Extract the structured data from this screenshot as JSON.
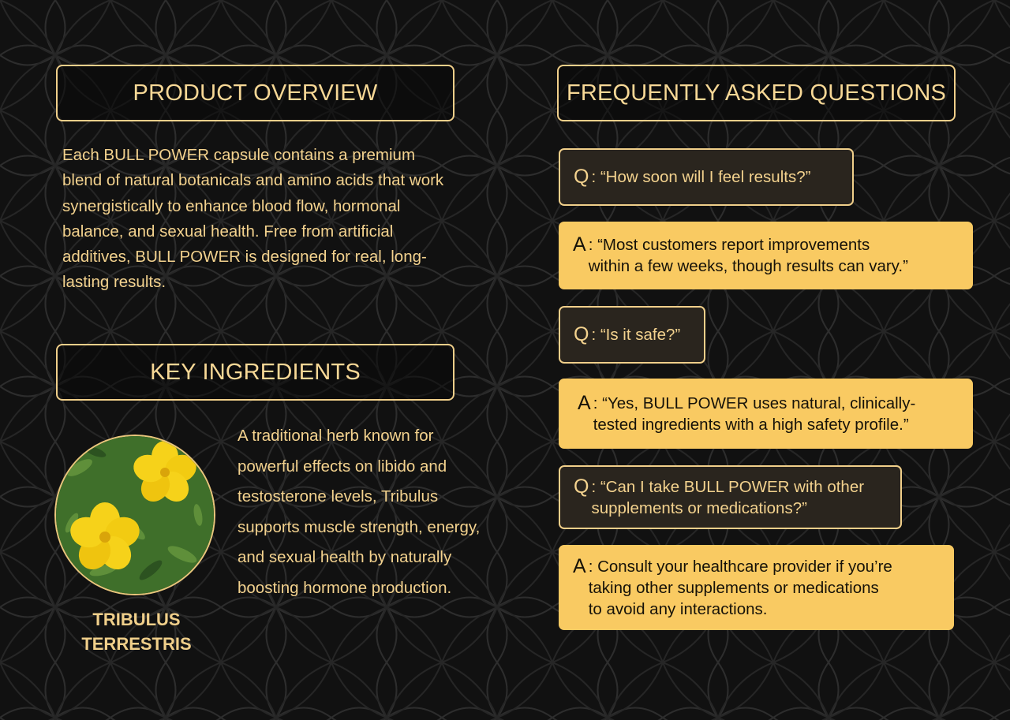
{
  "product_overview": {
    "title": "PRODUCT OVERVIEW",
    "text": "Each BULL POWER capsule contains a premium blend of natural botanicals and amino acids that work synergistically to enhance blood flow, hormonal balance, and sexual health. Free from artificial additives, BULL POWER is designed for real, long-lasting results."
  },
  "key_ingredients": {
    "title": "KEY INGREDIENTS",
    "ingredient_name": "TRIBULUS TERRESTRIS",
    "ingredient_description": "A traditional herb known for powerful effects on libido and testosterone levels, Tribulus supports muscle strength, energy, and sexual health by naturally boosting hormone production.",
    "image_icon": "yellow-flower-photo"
  },
  "faq": {
    "title": "FREQUENTLY ASKED QUESTIONS",
    "items": [
      {
        "q_prefix": "Q",
        "question": ": “How soon will I feel results?”",
        "a_prefix": "A",
        "answer": ": “Most customers report improvements\n  within a few weeks, though results can vary.”"
      },
      {
        "q_prefix": "Q",
        "question": ": “Is it safe?”",
        "a_prefix": "A",
        "answer": ": “Yes, BULL POWER uses natural, clinically-\n  tested ingredients with a high safety profile.”"
      },
      {
        "q_prefix": "Q",
        "question": ": “Can I take BULL POWER with other\n  supplements or medications?”",
        "a_prefix": "A",
        "answer": ": Consult your healthcare provider if you’re\n  taking other supplements or medications\n  to avoid any interactions."
      }
    ]
  },
  "colors": {
    "background": "#111111",
    "gold": "#f0cf8a",
    "answer_fill": "#f9ca62",
    "question_fill": "#2a251e",
    "pattern_line": "#2b2b2b"
  }
}
